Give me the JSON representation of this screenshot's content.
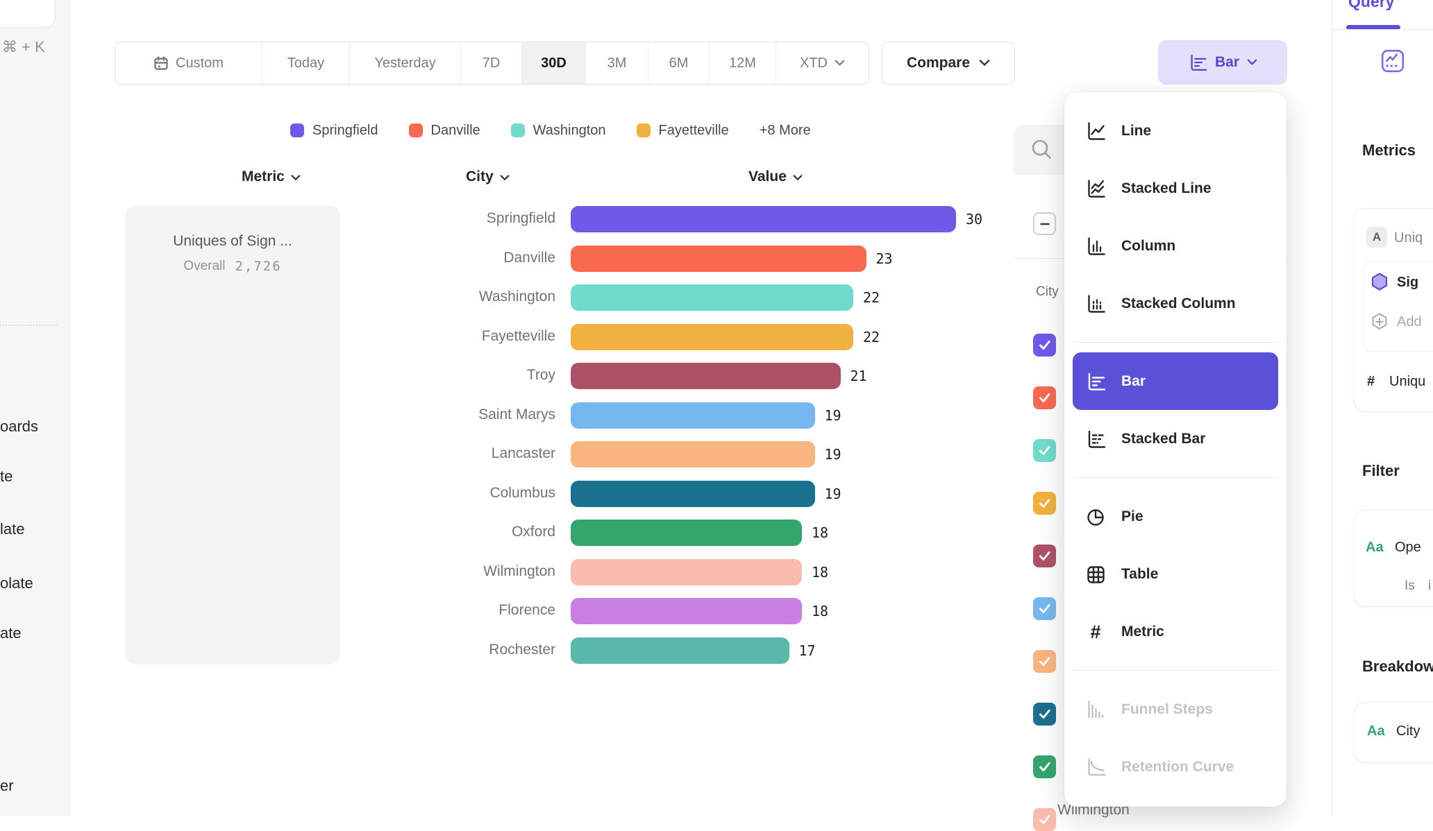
{
  "colors": {
    "accent": "#5B51D8",
    "accent_soft": "#E4E0FB",
    "accent_text": "#5347CE"
  },
  "left_rail": {
    "shortcut": "⌘ + K",
    "items": [
      "oards",
      "te",
      "late",
      "olate",
      "ate",
      "er"
    ]
  },
  "toolbar": {
    "date_ranges": [
      {
        "label": "Custom",
        "icon": "calendar"
      },
      {
        "label": "Today"
      },
      {
        "label": "Yesterday"
      },
      {
        "label": "7D"
      },
      {
        "label": "30D"
      },
      {
        "label": "3M"
      },
      {
        "label": "6M"
      },
      {
        "label": "12M"
      },
      {
        "label": "XTD",
        "chevron": true
      }
    ],
    "selected_range": "30D",
    "compare_label": "Compare",
    "chart_type_label": "Bar"
  },
  "legend": {
    "items": [
      {
        "label": "Springfield",
        "color": "#6D5BE8"
      },
      {
        "label": "Danville",
        "color": "#F8694F"
      },
      {
        "label": "Washington",
        "color": "#70DBCD"
      },
      {
        "label": "Fayetteville",
        "color": "#F0B13E"
      }
    ],
    "more_label": "+8 More"
  },
  "table_headers": {
    "metric": "Metric",
    "city": "City",
    "value": "Value"
  },
  "metric_card": {
    "title": "Uniques of Sign ...",
    "overall_label": "Overall",
    "overall_value": "2,726"
  },
  "chart_data": {
    "type": "bar",
    "orientation": "horizontal",
    "title": "Uniques of Sign ...",
    "overall": 2726,
    "xlim": [
      0,
      30
    ],
    "categories": [
      "Springfield",
      "Danville",
      "Washington",
      "Fayetteville",
      "Troy",
      "Saint Marys",
      "Lancaster",
      "Columbus",
      "Oxford",
      "Wilmington",
      "Florence",
      "Rochester"
    ],
    "values": [
      30,
      23,
      22,
      22,
      21,
      19,
      19,
      19,
      18,
      18,
      18,
      17
    ],
    "colors": [
      "#6D5BE8",
      "#F8694F",
      "#70DBCD",
      "#F0B13E",
      "#AE5168",
      "#76B7EF",
      "#FAB480",
      "#19718F",
      "#35A56E",
      "#FBBCAE",
      "#C87FE1",
      "#57B8AB"
    ]
  },
  "breakdown_panel": {
    "column_header": "City",
    "select_all_state": "indeterminate",
    "visible_rows": 10,
    "bottom_visible_city": "Wilmington"
  },
  "chart_type_menu": {
    "groups": [
      {
        "items": [
          {
            "label": "Line",
            "icon": "line-chart"
          },
          {
            "label": "Stacked Line",
            "icon": "stacked-line-chart"
          },
          {
            "label": "Column",
            "icon": "column-chart"
          },
          {
            "label": "Stacked Column",
            "icon": "stacked-column-chart"
          }
        ]
      },
      {
        "items": [
          {
            "label": "Bar",
            "icon": "bar-chart",
            "selected": true
          },
          {
            "label": "Stacked Bar",
            "icon": "stacked-bar-chart"
          }
        ]
      },
      {
        "items": [
          {
            "label": "Pie",
            "icon": "pie-chart"
          },
          {
            "label": "Table",
            "icon": "table-grid"
          },
          {
            "label": "Metric",
            "icon": "hash"
          }
        ]
      },
      {
        "items": [
          {
            "label": "Funnel Steps",
            "icon": "funnel-steps",
            "disabled": true
          },
          {
            "label": "Retention Curve",
            "icon": "retention-curve",
            "disabled": true
          }
        ]
      }
    ]
  },
  "right_sidebar": {
    "tab_label": "Query",
    "metrics_heading": "Metrics",
    "metric_letter_badge": "A",
    "metric_name_fragment": "Uniq",
    "event_fragment": "Sig",
    "add_fragment": "Add",
    "count_prefix": "#",
    "count_fragment": "Uniqu",
    "filter_heading": "Filter",
    "filter_type_badge": "Aa",
    "filter_property_fragment": "Ope",
    "filter_operator": "Is",
    "filter_value_fragment": "i",
    "breakdown_heading": "Breakdown",
    "breakdown_type_badge": "Aa",
    "breakdown_property": "City"
  }
}
